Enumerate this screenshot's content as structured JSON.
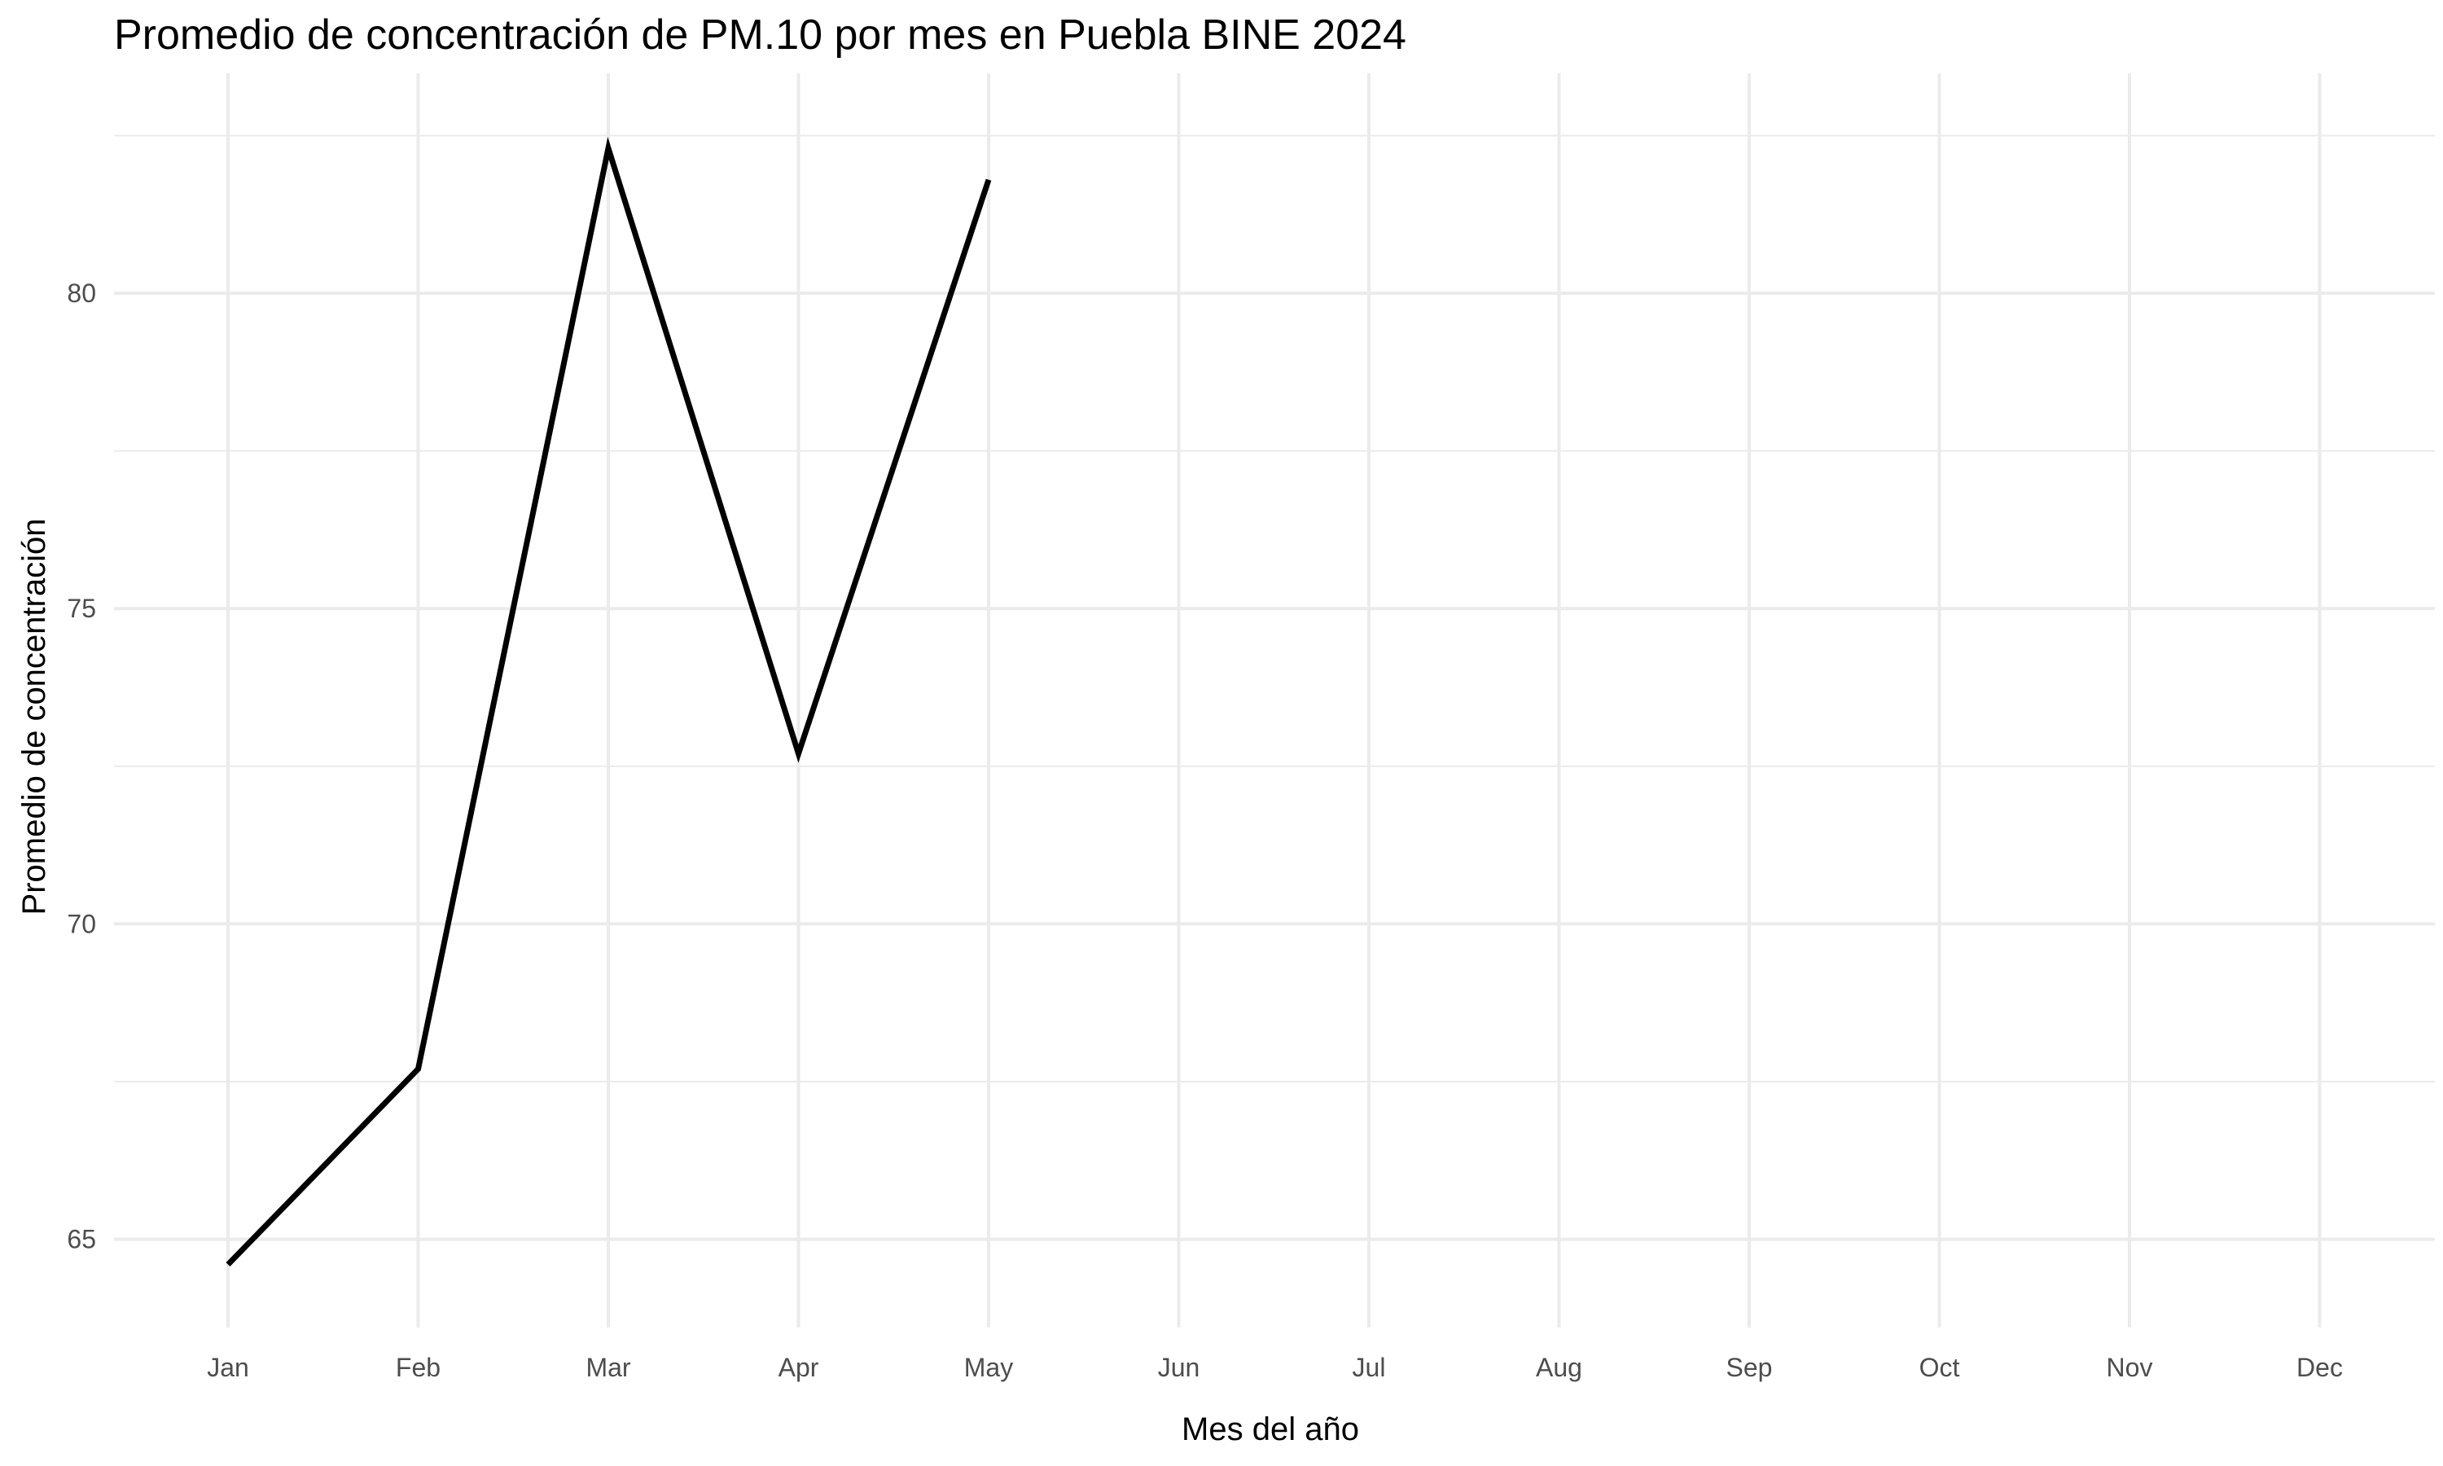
{
  "chart_data": {
    "type": "line",
    "title": "Promedio de concentración de PM.10 por mes en Puebla BINE 2024",
    "xlabel": "Mes del año",
    "ylabel": "Promedio de concentración",
    "categories": [
      "Jan",
      "Feb",
      "Mar",
      "Apr",
      "May",
      "Jun",
      "Jul",
      "Aug",
      "Sep",
      "Oct",
      "Nov",
      "Dec"
    ],
    "series": [
      {
        "values": [
          64.6,
          67.7,
          82.3,
          72.7,
          81.8,
          null,
          null,
          null,
          null,
          null,
          null,
          null
        ]
      }
    ],
    "y_ticks": [
      65,
      70,
      75,
      80
    ],
    "ylim": [
      63.6,
      83.1
    ],
    "grid": true,
    "line_color": "#000000"
  }
}
